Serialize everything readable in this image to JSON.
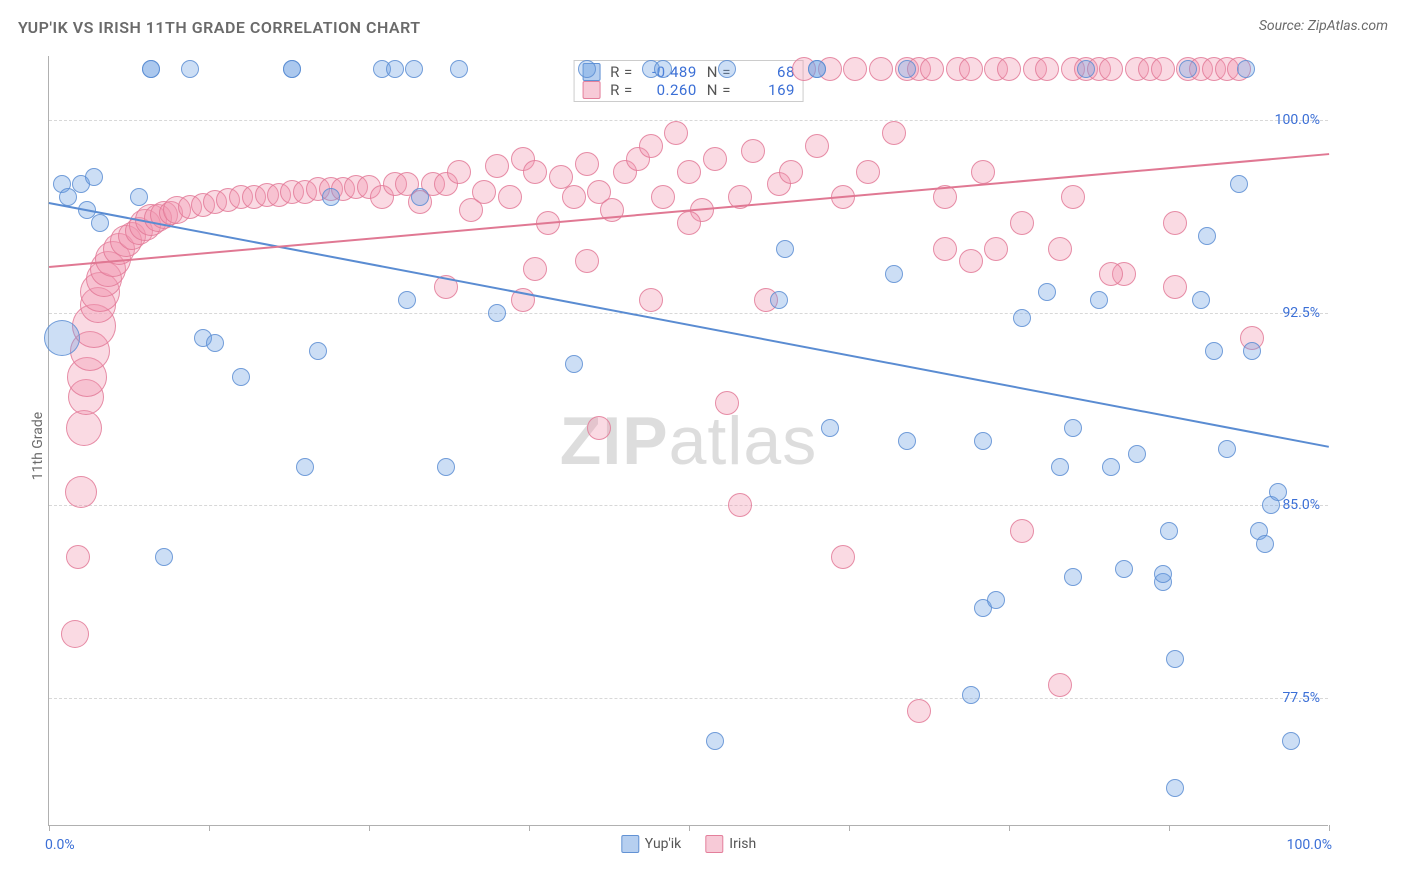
{
  "title": "YUP'IK VS IRISH 11TH GRADE CORRELATION CHART",
  "source": "Source: ZipAtlas.com",
  "ylabel": "11th Grade",
  "watermark_zip": "ZIP",
  "watermark_atlas": "atlas",
  "chart": {
    "type": "scatter",
    "xmin": 0,
    "xmax": 100,
    "ymin": 72.5,
    "ymax": 102.5,
    "xticks": [
      0,
      12.5,
      25,
      37.5,
      50,
      62.5,
      75,
      87.5,
      100
    ],
    "xlabel_start": "0.0%",
    "xlabel_end": "100.0%",
    "yticks": [
      77.5,
      85.0,
      92.5,
      100.0
    ],
    "ytick_labels": [
      "77.5%",
      "85.0%",
      "92.5%",
      "100.0%"
    ],
    "grid_color": "#d8d8d8",
    "axis_color": "#b0b0b0",
    "label_color": "#3b6fd6",
    "background_color": "#ffffff",
    "label_fontsize": 14,
    "title_fontsize": 16,
    "point_radius": 9,
    "line_width": 2
  },
  "series": [
    {
      "name": "Yup'ik",
      "color": "#5a8cd2",
      "fill": "rgba(110,160,225,0.35)",
      "trend": {
        "x1": 0,
        "y1": 96.8,
        "x2": 100,
        "y2": 87.3
      },
      "points": [
        [
          1,
          97.5
        ],
        [
          1.5,
          97
        ],
        [
          2.5,
          97.5
        ],
        [
          3,
          96.5
        ],
        [
          3.5,
          97.8
        ],
        [
          4,
          96
        ],
        [
          8,
          102
        ],
        [
          7,
          97
        ],
        [
          11,
          102
        ],
        [
          15,
          90
        ],
        [
          19,
          102
        ],
        [
          12,
          91.5
        ],
        [
          13,
          91.3
        ],
        [
          8,
          102
        ],
        [
          21,
          91
        ],
        [
          20,
          86.5
        ],
        [
          19,
          102
        ],
        [
          22,
          97
        ],
        [
          26,
          102
        ],
        [
          27,
          102
        ],
        [
          28,
          93
        ],
        [
          28.5,
          102
        ],
        [
          31,
          86.5
        ],
        [
          35,
          92.5
        ],
        [
          29,
          97
        ],
        [
          32,
          102
        ],
        [
          42,
          102
        ],
        [
          41,
          90.5
        ],
        [
          47,
          102
        ],
        [
          48,
          102
        ],
        [
          9,
          83
        ],
        [
          1,
          91.5,
          18
        ],
        [
          52,
          75.8
        ],
        [
          53,
          102
        ],
        [
          57,
          93
        ],
        [
          57.5,
          95
        ],
        [
          60,
          102
        ],
        [
          61,
          88
        ],
        [
          60,
          102
        ],
        [
          66,
          94
        ],
        [
          67,
          102
        ],
        [
          67,
          87.5
        ],
        [
          79,
          86.5
        ],
        [
          72,
          77.6
        ],
        [
          73,
          87.5
        ],
        [
          76,
          92.3
        ],
        [
          78,
          93.3
        ],
        [
          80,
          88
        ],
        [
          81,
          102
        ],
        [
          82,
          93
        ],
        [
          83,
          86.5
        ],
        [
          84,
          82.5
        ],
        [
          85,
          87
        ],
        [
          87,
          82
        ],
        [
          87.5,
          84
        ],
        [
          88,
          79
        ],
        [
          89,
          102
        ],
        [
          90,
          93
        ],
        [
          90.5,
          95.5
        ],
        [
          91,
          91
        ],
        [
          92,
          87.2
        ],
        [
          93,
          97.5
        ],
        [
          93.5,
          102
        ],
        [
          94,
          91
        ],
        [
          94.5,
          84
        ],
        [
          95,
          83.5
        ],
        [
          95.5,
          85
        ],
        [
          97,
          75.8
        ],
        [
          96,
          85.5
        ],
        [
          87,
          82.3
        ],
        [
          80,
          82.2
        ],
        [
          73,
          81
        ],
        [
          88,
          74
        ],
        [
          74,
          81.3
        ]
      ]
    },
    {
      "name": "Irish",
      "color": "#e07893",
      "fill": "rgba(240,150,175,0.35)",
      "trend": {
        "x1": 0,
        "y1": 94.3,
        "x2": 100,
        "y2": 98.7
      },
      "points": [
        [
          2,
          80,
          14
        ],
        [
          2.3,
          83,
          12
        ],
        [
          2.5,
          85.5,
          16
        ],
        [
          2.7,
          88,
          18
        ],
        [
          2.9,
          89.2,
          18
        ],
        [
          3,
          90,
          20
        ],
        [
          3.2,
          91,
          20
        ],
        [
          3.5,
          92,
          22
        ],
        [
          3.8,
          92.8,
          18
        ],
        [
          4,
          93.3,
          20
        ],
        [
          4.3,
          93.8,
          18
        ],
        [
          4.6,
          94.2,
          18
        ],
        [
          5,
          94.6,
          18
        ],
        [
          5.5,
          95,
          16
        ],
        [
          6,
          95.3,
          16
        ],
        [
          6.5,
          95.5,
          14
        ],
        [
          7,
          95.7,
          14
        ],
        [
          7.5,
          95.9,
          16
        ],
        [
          8,
          96.1,
          16
        ],
        [
          8.5,
          96.2,
          14
        ],
        [
          9,
          96.3,
          14
        ],
        [
          9.5,
          96.4,
          12
        ],
        [
          10,
          96.5,
          14
        ],
        [
          11,
          96.6,
          12
        ],
        [
          12,
          96.7,
          12
        ],
        [
          13,
          96.8,
          12
        ],
        [
          14,
          96.9,
          12
        ],
        [
          15,
          97,
          12
        ],
        [
          16,
          97,
          12
        ],
        [
          17,
          97.1,
          12
        ],
        [
          18,
          97.1,
          12
        ],
        [
          19,
          97.2,
          12
        ],
        [
          20,
          97.2,
          12
        ],
        [
          21,
          97.3,
          12
        ],
        [
          22,
          97.3,
          12
        ],
        [
          23,
          97.3,
          12
        ],
        [
          24,
          97.4,
          12
        ],
        [
          25,
          97.4,
          12
        ],
        [
          26,
          97,
          12
        ],
        [
          27,
          97.5,
          12
        ],
        [
          28,
          97.5,
          12
        ],
        [
          29,
          96.8,
          12
        ],
        [
          30,
          97.5,
          12
        ],
        [
          31,
          97.5,
          12
        ],
        [
          32,
          98,
          12
        ],
        [
          33,
          96.5,
          12
        ],
        [
          34,
          97.2,
          12
        ],
        [
          35,
          98.2,
          12
        ],
        [
          36,
          97,
          12
        ],
        [
          37,
          98.5,
          12
        ],
        [
          38,
          98,
          12
        ],
        [
          39,
          96,
          12
        ],
        [
          40,
          97.8,
          12
        ],
        [
          41,
          97,
          12
        ],
        [
          42,
          98.3,
          12
        ],
        [
          43,
          97.2,
          12
        ],
        [
          44,
          96.5,
          12
        ],
        [
          45,
          98,
          12
        ],
        [
          46,
          98.5,
          12
        ],
        [
          47,
          99,
          12
        ],
        [
          48,
          97,
          12
        ],
        [
          49,
          99.5,
          12
        ],
        [
          50,
          98,
          12
        ],
        [
          51,
          96.5,
          12
        ],
        [
          52,
          98.5,
          12
        ],
        [
          53,
          89,
          12
        ],
        [
          54,
          97,
          12
        ],
        [
          55,
          98.8,
          12
        ],
        [
          56,
          93,
          12
        ],
        [
          57,
          97.5,
          12
        ],
        [
          58,
          98,
          12
        ],
        [
          59,
          102,
          12
        ],
        [
          60,
          99,
          12
        ],
        [
          61,
          102,
          12
        ],
        [
          62,
          97,
          12
        ],
        [
          63,
          102,
          12
        ],
        [
          64,
          98,
          12
        ],
        [
          65,
          102,
          12
        ],
        [
          66,
          99.5,
          12
        ],
        [
          67,
          102,
          12
        ],
        [
          68,
          102,
          12
        ],
        [
          69,
          102,
          12
        ],
        [
          70,
          97,
          12
        ],
        [
          71,
          102,
          12
        ],
        [
          72,
          102,
          12
        ],
        [
          73,
          98,
          12
        ],
        [
          74,
          102,
          12
        ],
        [
          75,
          102,
          12
        ],
        [
          76,
          96,
          12
        ],
        [
          77,
          102,
          12
        ],
        [
          78,
          102,
          12
        ],
        [
          79,
          95,
          12
        ],
        [
          80,
          102,
          12
        ],
        [
          81,
          102,
          12
        ],
        [
          82,
          102,
          12
        ],
        [
          83,
          102,
          12
        ],
        [
          84,
          94,
          12
        ],
        [
          85,
          102,
          12
        ],
        [
          86,
          102,
          12
        ],
        [
          87,
          102,
          12
        ],
        [
          88,
          93.5,
          12
        ],
        [
          89,
          102,
          12
        ],
        [
          90,
          102,
          12
        ],
        [
          91,
          102,
          12
        ],
        [
          92,
          102,
          12
        ],
        [
          93,
          102,
          12
        ],
        [
          94,
          91.5,
          12
        ],
        [
          42,
          94.5,
          12
        ],
        [
          47,
          93,
          12
        ],
        [
          43,
          88,
          12
        ],
        [
          54,
          85,
          12
        ],
        [
          62,
          83,
          12
        ],
        [
          68,
          77,
          12
        ],
        [
          79,
          78,
          12
        ],
        [
          76,
          84,
          12
        ],
        [
          74,
          95,
          12
        ],
        [
          72,
          94.5,
          12
        ],
        [
          70,
          95,
          12
        ],
        [
          80,
          97,
          12
        ],
        [
          83,
          94,
          12
        ],
        [
          88,
          96,
          12
        ],
        [
          31,
          93.5,
          12
        ],
        [
          37,
          93,
          12
        ],
        [
          38,
          94.2,
          12
        ],
        [
          50,
          96,
          12
        ]
      ]
    }
  ],
  "legend_top": {
    "rows": [
      {
        "r_label": "R =",
        "r": "-0.489",
        "n_label": "N =",
        "n": "68",
        "sw": "b"
      },
      {
        "r_label": "R =",
        "r": "0.260",
        "n_label": "N =",
        "n": "169",
        "sw": "p"
      }
    ]
  },
  "legend_bottom": [
    {
      "label": "Yup'ik",
      "sw": "b"
    },
    {
      "label": "Irish",
      "sw": "p"
    }
  ]
}
